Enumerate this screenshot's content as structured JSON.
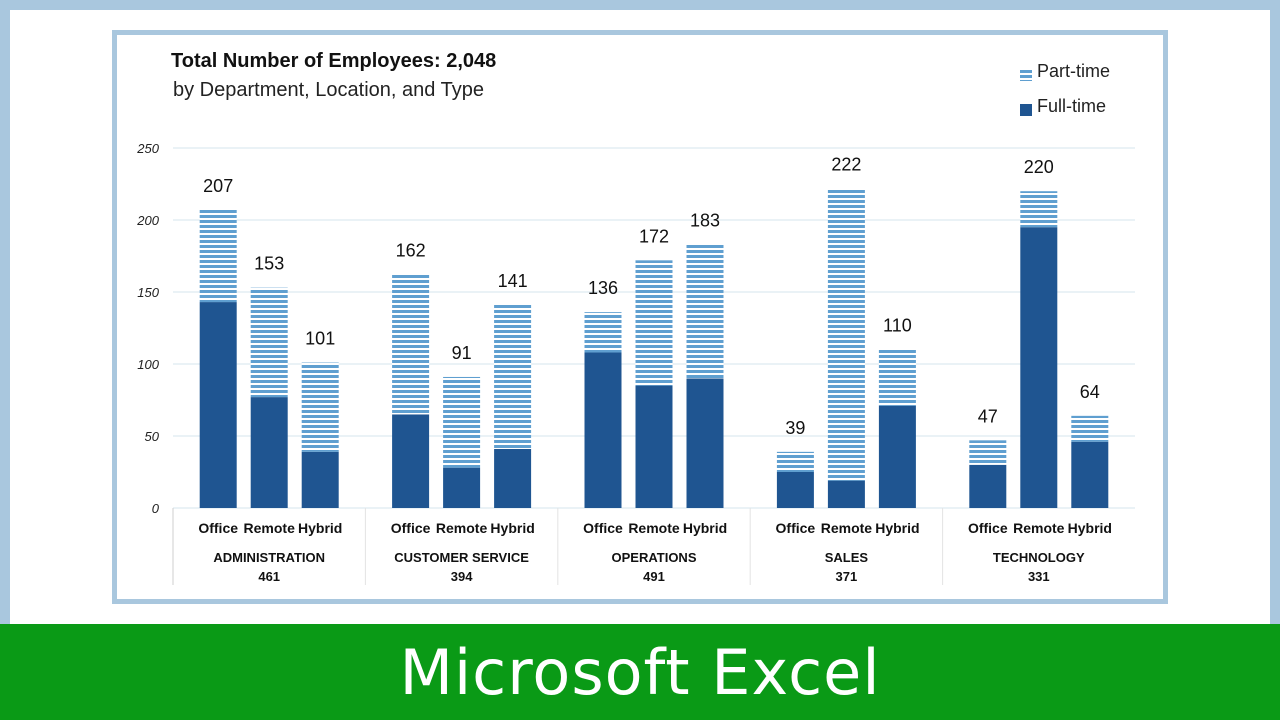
{
  "chart_data": {
    "type": "bar",
    "stacked": true,
    "title": "Total Number of Employees: 2,048",
    "subtitle": "by Department, Location, and Type",
    "ylim": [
      0,
      250
    ],
    "yticks": [
      0,
      50,
      100,
      150,
      200,
      250
    ],
    "grid": true,
    "legend_position": "top-right",
    "legend": [
      "Part-time",
      "Full-time"
    ],
    "groups": [
      {
        "name": "ADMINISTRATION",
        "total": "461"
      },
      {
        "name": "CUSTOMER SERVICE",
        "total": "394"
      },
      {
        "name": "OPERATIONS",
        "total": "491"
      },
      {
        "name": "SALES",
        "total": "371"
      },
      {
        "name": "TECHNOLOGY",
        "total": "331"
      }
    ],
    "categories": [
      "Office",
      "Remote",
      "Hybrid"
    ],
    "series": [
      {
        "name": "Full-time",
        "values": [
          [
            143,
            77,
            39
          ],
          [
            65,
            28,
            41
          ],
          [
            108,
            85,
            90
          ],
          [
            25,
            19,
            71
          ],
          [
            30,
            195,
            46
          ]
        ]
      },
      {
        "name": "Part-time",
        "values": [
          [
            64,
            76,
            62
          ],
          [
            97,
            63,
            100
          ],
          [
            28,
            87,
            93
          ],
          [
            14,
            203,
            39
          ],
          [
            17,
            25,
            18
          ]
        ]
      }
    ],
    "bar_totals": [
      [
        "207",
        "153",
        "101"
      ],
      [
        "162",
        "91",
        "141"
      ],
      [
        "136",
        "172",
        "183"
      ],
      [
        "39",
        "222",
        "110"
      ],
      [
        "47",
        "220",
        "64"
      ]
    ],
    "colors": {
      "full_time": "#1f5591",
      "part_time": "#5f9fd0",
      "grid": "#d5e4ee"
    }
  },
  "footer": {
    "text": "Microsoft Excel"
  }
}
